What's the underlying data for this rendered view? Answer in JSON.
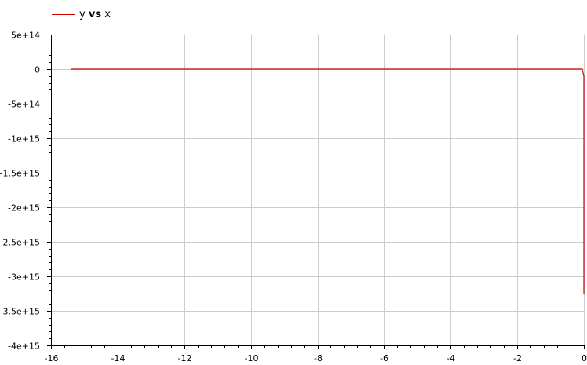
{
  "chart_data": {
    "type": "line",
    "title": "",
    "xlabel": "",
    "ylabel": "",
    "xlim": [
      -16,
      0
    ],
    "ylim": [
      -4000000000000000.0,
      500000000000000.0
    ],
    "grid": true,
    "legend_position": "top-left",
    "x_ticks": [
      -16,
      -14,
      -12,
      -10,
      -8,
      -6,
      -4,
      -2,
      0
    ],
    "x_tick_labels": [
      "-16",
      "-14",
      "-12",
      "-10",
      "-8",
      "-6",
      "-4",
      "-2",
      "0"
    ],
    "y_ticks": [
      500000000000000.0,
      0,
      -500000000000000.0,
      -1000000000000000.0,
      -1500000000000000.0,
      -2000000000000000.0,
      -2500000000000000.0,
      -3000000000000000.0,
      -3500000000000000.0,
      -4000000000000000.0
    ],
    "y_tick_labels": [
      "5e+14",
      "0",
      "-5e+14",
      "-1e+15",
      "-1.5e+15",
      "-2e+15",
      "-2.5e+15",
      "-3e+15",
      "-3.5e+15",
      "-4e+15"
    ],
    "series": [
      {
        "name": "y vs x",
        "color": "#d40000",
        "x": [
          -15.4,
          -2,
          -0.5,
          -0.05,
          0,
          0
        ],
        "y": [
          0,
          0,
          0,
          0,
          -100000000000000.0,
          -3250000000000000.0
        ]
      }
    ]
  },
  "legend": {
    "y": "y",
    "vs": "vs",
    "x": "x"
  }
}
